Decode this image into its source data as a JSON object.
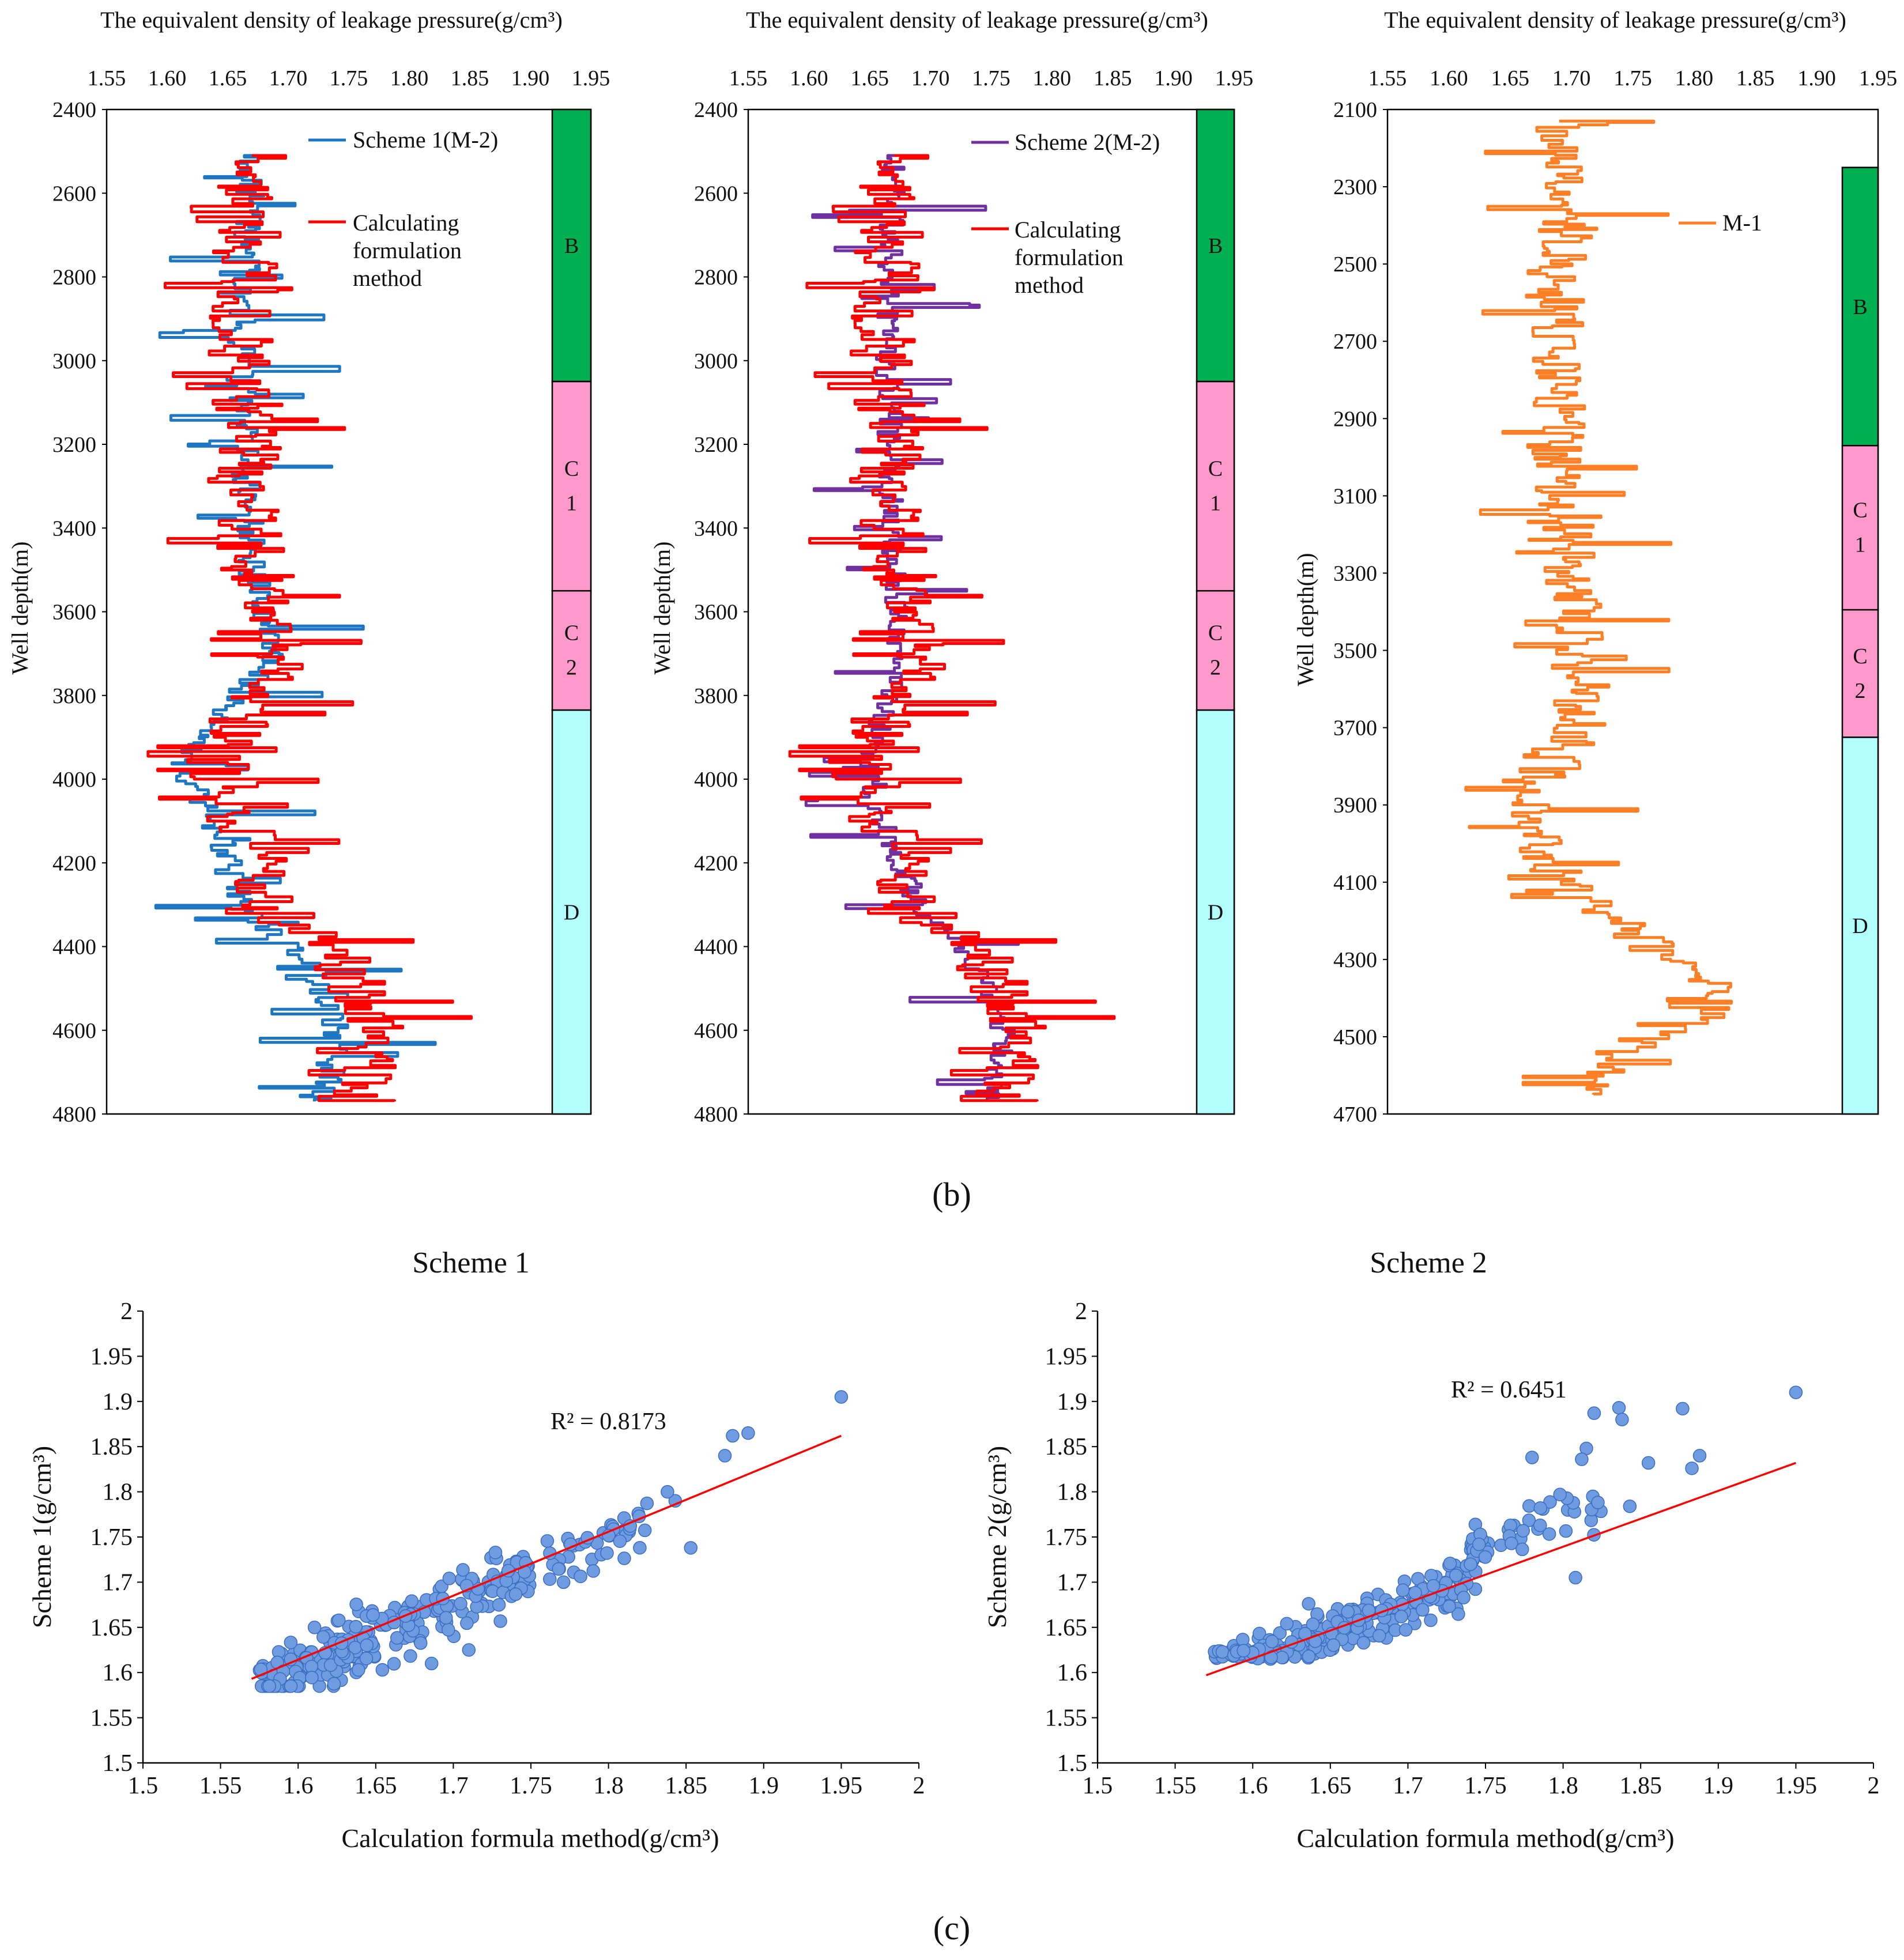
{
  "figure": {
    "label_b": "(b)",
    "label_c": "(c)"
  },
  "chart_data": [
    {
      "type": "line",
      "id": "log-m2-scheme1",
      "title": "The equivalent density of leakage pressure(g/cm³)",
      "xlabel": "The equivalent density of leakage pressure(g/cm³)",
      "ylabel": "Well depth(m)",
      "xlim": [
        1.55,
        1.95
      ],
      "ylim": [
        2400,
        4800
      ],
      "xticks": [
        "1.55",
        "1.60",
        "1.65",
        "1.70",
        "1.75",
        "1.80",
        "1.85",
        "1.90",
        "1.95"
      ],
      "yticks": [
        "2400",
        "2600",
        "2800",
        "3000",
        "3200",
        "3400",
        "3600",
        "3800",
        "4000",
        "4200",
        "4400",
        "4600",
        "4800"
      ],
      "zones": [
        {
          "name": "B",
          "top": 2400,
          "bottom": 3050,
          "color": "#00b050",
          "label": "B"
        },
        {
          "name": "C1",
          "top": 3050,
          "bottom": 3550,
          "color": "#ff99cc",
          "label": "C 1"
        },
        {
          "name": "C2",
          "top": 3550,
          "bottom": 3835,
          "color": "#ff99cc",
          "label": "C 2"
        },
        {
          "name": "D",
          "top": 3835,
          "bottom": 4800,
          "color": "#b3ffff",
          "label": "D"
        }
      ],
      "series": [
        {
          "name": "Scheme 1(M-2)",
          "color": "#1f77c4",
          "depth_top": 2510,
          "depth_bottom": 4770,
          "trend": [
            [
              2510,
              1.67
            ],
            [
              3000,
              1.66
            ],
            [
              3500,
              1.67
            ],
            [
              3700,
              1.69
            ],
            [
              3950,
              1.61
            ],
            [
              4100,
              1.64
            ],
            [
              4300,
              1.66
            ],
            [
              4450,
              1.72
            ],
            [
              4600,
              1.74
            ],
            [
              4770,
              1.73
            ]
          ]
        },
        {
          "name": "Calculating formulation method",
          "color": "#ff0000",
          "depth_top": 2510,
          "depth_bottom": 4770,
          "trend": [
            [
              2510,
              1.67
            ],
            [
              3000,
              1.66
            ],
            [
              3500,
              1.67
            ],
            [
              3700,
              1.69
            ],
            [
              3950,
              1.64
            ],
            [
              4100,
              1.66
            ],
            [
              4300,
              1.69
            ],
            [
              4450,
              1.75
            ],
            [
              4600,
              1.78
            ],
            [
              4770,
              1.76
            ]
          ]
        }
      ]
    },
    {
      "type": "line",
      "id": "log-m2-scheme2",
      "title": "The equivalent density of leakage pressure(g/cm³)",
      "xlabel": "The equivalent density of leakage pressure(g/cm³)",
      "ylabel": "Well depth(m)",
      "xlim": [
        1.55,
        1.95
      ],
      "ylim": [
        2400,
        4800
      ],
      "xticks": [
        "1.55",
        "1.60",
        "1.65",
        "1.70",
        "1.75",
        "1.80",
        "1.85",
        "1.90",
        "1.95"
      ],
      "yticks": [
        "2400",
        "2600",
        "2800",
        "3000",
        "3200",
        "3400",
        "3600",
        "3800",
        "4000",
        "4200",
        "4400",
        "4600",
        "4800"
      ],
      "zones": [
        {
          "name": "B",
          "top": 2400,
          "bottom": 3050,
          "color": "#00b050",
          "label": "B"
        },
        {
          "name": "C1",
          "top": 3050,
          "bottom": 3550,
          "color": "#ff99cc",
          "label": "C 1"
        },
        {
          "name": "C2",
          "top": 3550,
          "bottom": 3835,
          "color": "#ff99cc",
          "label": "C 2"
        },
        {
          "name": "D",
          "top": 3835,
          "bottom": 4800,
          "color": "#b3ffff",
          "label": "D"
        }
      ],
      "series": [
        {
          "name": "Scheme 2(M-2)",
          "color": "#7030a0",
          "depth_top": 2510,
          "depth_bottom": 4770,
          "trend": [
            [
              2510,
              1.67
            ],
            [
              3000,
              1.665
            ],
            [
              3500,
              1.67
            ],
            [
              3700,
              1.675
            ],
            [
              3950,
              1.65
            ],
            [
              4100,
              1.66
            ],
            [
              4300,
              1.69
            ],
            [
              4450,
              1.74
            ],
            [
              4600,
              1.76
            ],
            [
              4770,
              1.75
            ]
          ]
        },
        {
          "name": "Calculating formulation method",
          "color": "#ff0000",
          "depth_top": 2510,
          "depth_bottom": 4770,
          "trend": [
            [
              2510,
              1.67
            ],
            [
              3000,
              1.66
            ],
            [
              3500,
              1.67
            ],
            [
              3700,
              1.69
            ],
            [
              3950,
              1.64
            ],
            [
              4100,
              1.66
            ],
            [
              4300,
              1.69
            ],
            [
              4450,
              1.75
            ],
            [
              4600,
              1.78
            ],
            [
              4770,
              1.76
            ]
          ]
        }
      ]
    },
    {
      "type": "line",
      "id": "log-m1",
      "title": "The equivalent density of leakage pressure(g/cm³)",
      "xlabel": "The equivalent density of leakage pressure(g/cm³)",
      "ylabel": "Well depth(m)",
      "xlim": [
        1.55,
        1.95
      ],
      "ylim": [
        2100,
        4700
      ],
      "xticks": [
        "1.55",
        "1.60",
        "1.65",
        "1.70",
        "1.75",
        "1.80",
        "1.85",
        "1.90",
        "1.95"
      ],
      "yticks": [
        "2100",
        "2300",
        "2500",
        "2700",
        "2900",
        "3100",
        "3300",
        "3500",
        "3700",
        "3900",
        "4100",
        "4300",
        "4500",
        "4700"
      ],
      "zones": [
        {
          "name": "B",
          "top": 2250,
          "bottom": 2970,
          "color": "#00b050",
          "label": "B"
        },
        {
          "name": "C1",
          "top": 2970,
          "bottom": 3395,
          "color": "#ff99cc",
          "label": "C 1"
        },
        {
          "name": "C2",
          "top": 3395,
          "bottom": 3725,
          "color": "#ff99cc",
          "label": "C 2"
        },
        {
          "name": "D",
          "top": 3725,
          "bottom": 4700,
          "color": "#b3ffff",
          "label": "D"
        }
      ],
      "series": [
        {
          "name": "M-1",
          "color": "#ff7f27",
          "depth_top": 2130,
          "depth_bottom": 4650,
          "trend": [
            [
              2130,
              1.69
            ],
            [
              2600,
              1.69
            ],
            [
              3000,
              1.69
            ],
            [
              3300,
              1.7
            ],
            [
              3600,
              1.71
            ],
            [
              3750,
              1.69
            ],
            [
              3950,
              1.67
            ],
            [
              4100,
              1.69
            ],
            [
              4250,
              1.76
            ],
            [
              4400,
              1.83
            ],
            [
              4550,
              1.73
            ],
            [
              4650,
              1.72
            ]
          ]
        }
      ]
    },
    {
      "type": "scatter",
      "id": "scatter-scheme1",
      "title": "Scheme 1",
      "xlabel": "Calculation formula method(g/cm³)",
      "ylabel": "Scheme 1(g/cm³)",
      "xlim": [
        1.5,
        2.0
      ],
      "ylim": [
        1.5,
        2.0
      ],
      "xticks": [
        "1.5",
        "1.55",
        "1.6",
        "1.65",
        "1.7",
        "1.75",
        "1.8",
        "1.85",
        "1.9",
        "1.95",
        "2"
      ],
      "yticks": [
        "1.5",
        "1.55",
        "1.6",
        "1.65",
        "1.7",
        "1.75",
        "1.8",
        "1.85",
        "1.9",
        "1.95",
        "2"
      ],
      "annotation": "R² = 0.8173",
      "trendline": {
        "x": [
          1.57,
          1.95
        ],
        "y": [
          1.593,
          1.862
        ],
        "color": "#ff0000"
      },
      "points_summary": {
        "count": 300,
        "x_range": [
          1.57,
          1.95
        ],
        "y_range": [
          1.585,
          1.905
        ]
      },
      "outliers": [
        [
          1.95,
          1.905
        ],
        [
          1.89,
          1.865
        ],
        [
          1.88,
          1.862
        ],
        [
          1.875,
          1.84
        ],
        [
          1.853,
          1.738
        ],
        [
          1.843,
          1.79
        ],
        [
          1.838,
          1.8
        ],
        [
          1.71,
          1.625
        ],
        [
          1.686,
          1.61
        ]
      ]
    },
    {
      "type": "scatter",
      "id": "scatter-scheme2",
      "title": "Scheme 2",
      "xlabel": "Calculation formula method(g/cm³)",
      "ylabel": "Scheme 2(g/cm³)",
      "xlim": [
        1.5,
        2.0
      ],
      "ylim": [
        1.5,
        2.0
      ],
      "xticks": [
        "1.5",
        "1.55",
        "1.6",
        "1.65",
        "1.7",
        "1.75",
        "1.8",
        "1.85",
        "1.9",
        "1.95",
        "2"
      ],
      "yticks": [
        "1.5",
        "1.55",
        "1.6",
        "1.65",
        "1.7",
        "1.75",
        "1.8",
        "1.85",
        "1.9",
        "1.95",
        "2"
      ],
      "annotation": "R² = 0.6451",
      "trendline": {
        "x": [
          1.57,
          1.95
        ],
        "y": [
          1.597,
          1.832
        ],
        "color": "#ff0000"
      },
      "points_summary": {
        "count": 300,
        "x_range": [
          1.57,
          1.95
        ],
        "y_range": [
          1.615,
          1.91
        ]
      },
      "outliers": [
        [
          1.95,
          1.91
        ],
        [
          1.877,
          1.892
        ],
        [
          1.836,
          1.893
        ],
        [
          1.838,
          1.88
        ],
        [
          1.82,
          1.887
        ],
        [
          1.815,
          1.848
        ],
        [
          1.812,
          1.836
        ],
        [
          1.78,
          1.838
        ],
        [
          1.855,
          1.832
        ],
        [
          1.888,
          1.84
        ],
        [
          1.883,
          1.826
        ],
        [
          1.843,
          1.784
        ],
        [
          1.798,
          1.797
        ],
        [
          1.808,
          1.705
        ]
      ]
    }
  ]
}
